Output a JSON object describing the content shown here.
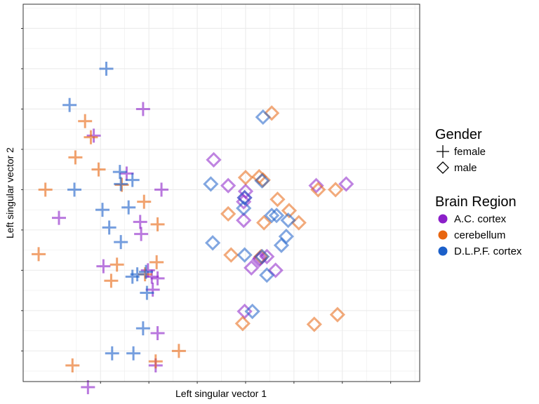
{
  "chart_data": {
    "type": "scatter",
    "xlabel": "Left singular vector 1",
    "ylabel": "Left singular vector 2",
    "xlim": [
      -0.18,
      0.23
    ],
    "ylim": [
      -0.238,
      0.23
    ],
    "x_ticks": [
      -0.1,
      -0.05,
      0.0,
      0.05,
      0.1,
      0.15,
      0.2
    ],
    "y_ticks": [
      -0.2,
      -0.15,
      -0.1,
      -0.05,
      0.0,
      0.05,
      0.1,
      0.15,
      0.2
    ],
    "tick_labels_visible": false,
    "grid": true,
    "legend_position": "right",
    "legends": [
      {
        "title": "Gender",
        "entries": [
          {
            "label": "female",
            "shape": "cross"
          },
          {
            "label": "male",
            "shape": "diamond"
          }
        ]
      },
      {
        "title": "Brain Region",
        "entries": [
          {
            "label": "A.C. cortex",
            "color": "#8B1FC9"
          },
          {
            "label": "cerebellum",
            "color": "#E8650F"
          },
          {
            "label": "D.L.P.F. cortex",
            "color": "#1B5FC9"
          }
        ]
      }
    ],
    "series": [
      {
        "gender": "female",
        "region": "A.C. cortex",
        "points": [
          [
            -0.056,
            0.1
          ],
          [
            -0.107,
            0.067
          ],
          [
            -0.037,
            0.0
          ],
          [
            -0.143,
            -0.035
          ],
          [
            -0.097,
            -0.095
          ],
          [
            -0.073,
            0.02
          ],
          [
            -0.059,
            -0.04
          ],
          [
            -0.058,
            -0.055
          ],
          [
            -0.051,
            -0.1
          ],
          [
            -0.047,
            -0.108
          ],
          [
            -0.041,
            -0.11
          ],
          [
            -0.046,
            -0.124
          ],
          [
            -0.041,
            -0.178
          ],
          [
            -0.043,
            -0.218
          ],
          [
            -0.113,
            -0.245
          ]
        ]
      },
      {
        "gender": "female",
        "region": "cerebellum",
        "points": [
          [
            -0.157,
            0.0
          ],
          [
            -0.116,
            0.085
          ],
          [
            -0.11,
            0.065
          ],
          [
            -0.126,
            0.04
          ],
          [
            -0.102,
            0.025
          ],
          [
            -0.078,
            0.006
          ],
          [
            -0.055,
            -0.015
          ],
          [
            -0.041,
            -0.043
          ],
          [
            -0.164,
            -0.08
          ],
          [
            -0.083,
            -0.093
          ],
          [
            -0.089,
            -0.113
          ],
          [
            -0.042,
            -0.09
          ],
          [
            -0.054,
            -0.105
          ],
          [
            -0.019,
            -0.2
          ],
          [
            -0.043,
            -0.213
          ],
          [
            -0.129,
            -0.218
          ]
        ]
      },
      {
        "gender": "female",
        "region": "D.L.P.F. cortex",
        "points": [
          [
            -0.094,
            0.15
          ],
          [
            -0.132,
            0.105
          ],
          [
            -0.127,
            0.0
          ],
          [
            -0.08,
            0.022
          ],
          [
            -0.067,
            0.012
          ],
          [
            -0.079,
            0.007
          ],
          [
            -0.071,
            -0.022
          ],
          [
            -0.098,
            -0.025
          ],
          [
            -0.091,
            -0.047
          ],
          [
            -0.079,
            -0.065
          ],
          [
            -0.052,
            -0.128
          ],
          [
            -0.062,
            -0.105
          ],
          [
            -0.053,
            -0.102
          ],
          [
            -0.067,
            -0.108
          ],
          [
            -0.056,
            -0.172
          ],
          [
            -0.066,
            -0.203
          ],
          [
            -0.088,
            -0.203
          ]
        ]
      },
      {
        "gender": "male",
        "region": "A.C. cortex",
        "points": [
          [
            0.017,
            0.037
          ],
          [
            0.032,
            0.005
          ],
          [
            0.05,
            -0.002
          ],
          [
            0.049,
            -0.01
          ],
          [
            0.048,
            -0.015
          ],
          [
            0.048,
            -0.038
          ],
          [
            0.065,
            -0.085
          ],
          [
            0.064,
            -0.087
          ],
          [
            0.072,
            -0.083
          ],
          [
            0.081,
            -0.1
          ],
          [
            0.056,
            -0.097
          ],
          [
            0.049,
            -0.151
          ],
          [
            0.123,
            0.005
          ],
          [
            0.154,
            0.007
          ]
        ]
      },
      {
        "gender": "male",
        "region": "cerebellum",
        "points": [
          [
            0.077,
            0.095
          ],
          [
            0.05,
            0.015
          ],
          [
            0.064,
            0.016
          ],
          [
            0.068,
            0.012
          ],
          [
            0.083,
            -0.012
          ],
          [
            0.095,
            -0.026
          ],
          [
            0.066,
            -0.083
          ],
          [
            0.032,
            -0.03
          ],
          [
            0.035,
            -0.081
          ],
          [
            0.069,
            -0.041
          ],
          [
            0.105,
            -0.041
          ],
          [
            0.047,
            -0.166
          ],
          [
            0.125,
            0.0
          ],
          [
            0.143,
            0.0
          ],
          [
            0.121,
            -0.167
          ],
          [
            0.145,
            -0.155
          ]
        ]
      },
      {
        "gender": "male",
        "region": "D.L.P.F. cortex",
        "points": [
          [
            0.068,
            0.09
          ],
          [
            0.067,
            0.011
          ],
          [
            0.014,
            0.007
          ],
          [
            0.049,
            -0.01
          ],
          [
            0.048,
            -0.023
          ],
          [
            0.077,
            -0.032
          ],
          [
            0.082,
            -0.032
          ],
          [
            0.094,
            -0.038
          ],
          [
            0.092,
            -0.058
          ],
          [
            0.087,
            -0.069
          ],
          [
            0.016,
            -0.066
          ],
          [
            0.049,
            -0.081
          ],
          [
            0.067,
            -0.083
          ],
          [
            0.072,
            -0.106
          ],
          [
            0.057,
            -0.151
          ]
        ]
      }
    ]
  }
}
